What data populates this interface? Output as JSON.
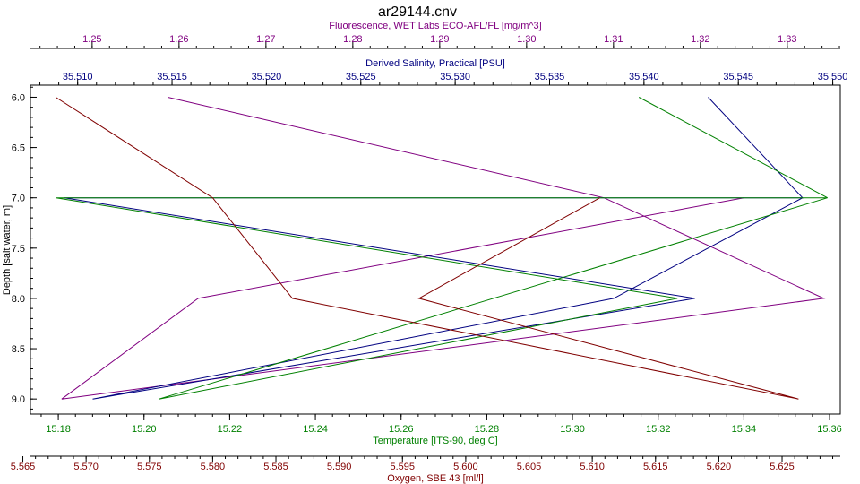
{
  "chart_data": {
    "type": "line",
    "title": "ar29144.cnv",
    "depth_axis": {
      "label": "Depth [salt water, m]",
      "range": [
        5.88,
        9.15
      ],
      "ticks": [
        "6.0",
        "6.5",
        "7.0",
        "7.5",
        "8.0",
        "8.5",
        "9.0"
      ],
      "reversed": true
    },
    "axes": [
      {
        "id": "fluorescence",
        "label": "Fluorescence, WET Labs ECO-AFL/FL [mg/m^3]",
        "color": "#800080",
        "position": "top",
        "range": [
          1.2429,
          1.3361
        ],
        "ticks": [
          "1.25",
          "1.26",
          "1.27",
          "1.28",
          "1.29",
          "1.30",
          "1.31",
          "1.32",
          "1.33"
        ]
      },
      {
        "id": "salinity",
        "label": "Derived Salinity, Practical [PSU]",
        "color": "#000080",
        "position": "top",
        "range": [
          35.5075,
          35.5504
        ],
        "ticks": [
          "35.510",
          "35.515",
          "35.520",
          "35.525",
          "35.530",
          "35.535",
          "35.540",
          "35.545",
          "35.550"
        ]
      },
      {
        "id": "temperature",
        "label": "Temperature [ITS-90, deg C]",
        "color": "#008000",
        "position": "bottom",
        "range": [
          15.1735,
          15.3625
        ],
        "ticks": [
          "15.18",
          "15.20",
          "15.22",
          "15.24",
          "15.26",
          "15.28",
          "15.30",
          "15.32",
          "15.34",
          "15.36"
        ]
      },
      {
        "id": "oxygen",
        "label": "Oxygen, SBE 43 [ml/l]",
        "color": "#800000",
        "position": "bottom",
        "range": [
          5.5656,
          5.6296
        ],
        "ticks": [
          "5.565",
          "5.570",
          "5.575",
          "5.580",
          "5.585",
          "5.590",
          "5.595",
          "5.600",
          "5.605",
          "5.610",
          "5.615",
          "5.620",
          "5.625"
        ]
      }
    ],
    "series": [
      {
        "axis": "fluorescence",
        "color": "#800080",
        "points": [
          [
            1.2587,
            6.0
          ],
          [
            1.3089,
            7.0
          ],
          [
            1.3342,
            8.0
          ],
          [
            1.2465,
            9.0
          ],
          [
            1.2622,
            8.0
          ],
          [
            1.325,
            7.0
          ]
        ]
      },
      {
        "axis": "salinity",
        "color": "#000080",
        "points": [
          [
            35.5434,
            6.0
          ],
          [
            35.5484,
            7.0
          ],
          [
            35.5093,
            7.0
          ],
          [
            35.5427,
            8.0
          ],
          [
            35.5108,
            9.0
          ],
          [
            35.5384,
            8.0
          ],
          [
            35.5484,
            7.0
          ]
        ]
      },
      {
        "axis": "temperature",
        "color": "#008000",
        "points": [
          [
            15.3155,
            6.0
          ],
          [
            15.3595,
            7.0
          ],
          [
            15.1795,
            7.0
          ],
          [
            15.3245,
            8.0
          ],
          [
            15.2035,
            9.0
          ],
          [
            15.3595,
            7.0
          ]
        ]
      },
      {
        "axis": "oxygen",
        "color": "#800000",
        "points": [
          [
            5.5676,
            6.0
          ],
          [
            5.58,
            7.0
          ],
          [
            5.5863,
            8.0
          ],
          [
            5.6263,
            9.0
          ],
          [
            5.5963,
            8.0
          ],
          [
            5.6106,
            7.0
          ]
        ]
      }
    ],
    "grid": false
  }
}
